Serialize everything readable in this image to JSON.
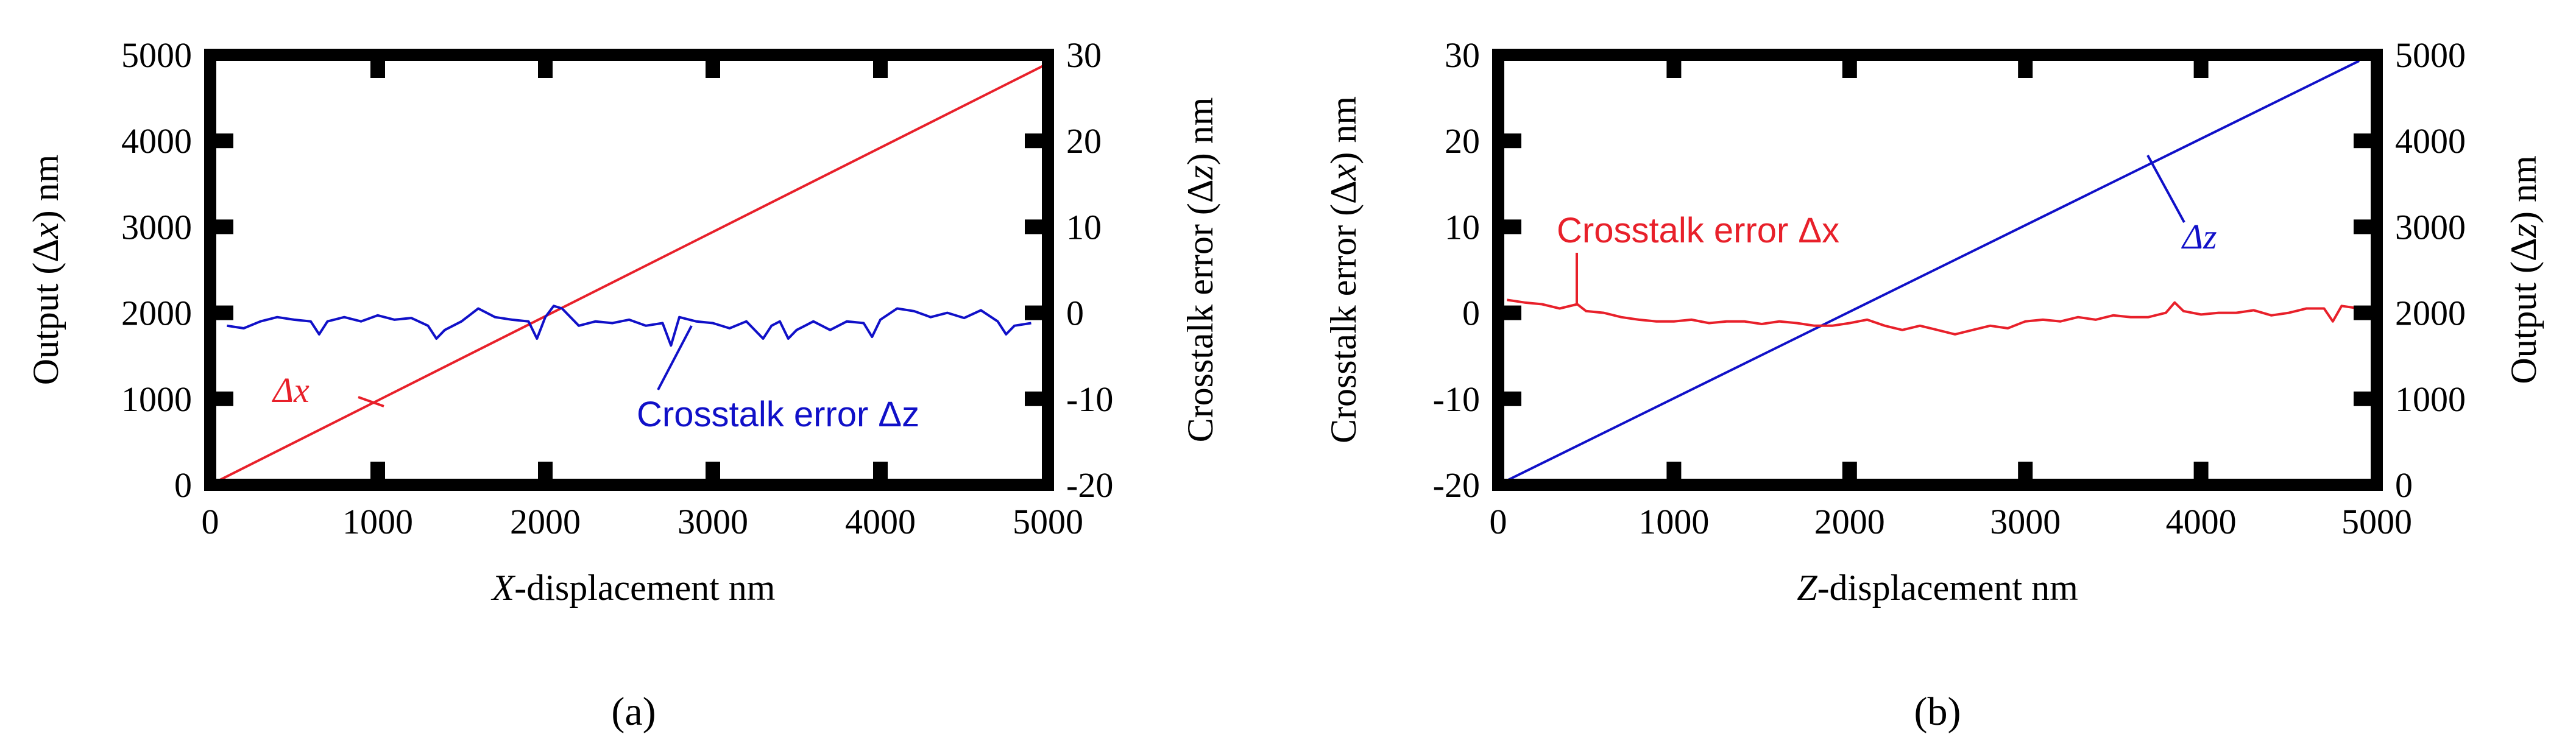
{
  "chart_data": [
    {
      "panel": "a",
      "panel_label": "(a)",
      "type": "line",
      "xlabel": {
        "italic": "X",
        "text": "-displacement  nm"
      },
      "xlim": [
        0,
        5000
      ],
      "xticks": [
        0,
        1000,
        2000,
        3000,
        4000,
        5000
      ],
      "left_axis": {
        "label": "Output (Δx)  nm",
        "label_parts": [
          "Output (Δ",
          "x",
          ")  nm"
        ],
        "ylim": [
          0,
          5000
        ],
        "ticks": [
          0,
          1000,
          2000,
          3000,
          4000,
          5000
        ]
      },
      "right_axis": {
        "label": "Crosstalk error (Δz)  nm",
        "label_parts": [
          "Crosstalk error (Δ",
          "z",
          ")  nm"
        ],
        "ylim": [
          -20,
          30
        ],
        "ticks": [
          -20,
          -10,
          0,
          10,
          20,
          30
        ]
      },
      "series": [
        {
          "name": "Δx",
          "color": "#e8202a",
          "axis": "left",
          "x": [
            0,
            5000
          ],
          "y": [
            0,
            4900
          ]
        },
        {
          "name": "Crosstalk error Δz",
          "color": "#1010c8",
          "axis": "right",
          "x": [
            100,
            200,
            300,
            400,
            500,
            600,
            650,
            700,
            800,
            900,
            1000,
            1100,
            1200,
            1300,
            1350,
            1400,
            1500,
            1600,
            1700,
            1800,
            1900,
            1950,
            2000,
            2050,
            2100,
            2200,
            2300,
            2400,
            2500,
            2600,
            2700,
            2750,
            2800,
            2900,
            3000,
            3100,
            3200,
            3300,
            3350,
            3400,
            3450,
            3500,
            3550,
            3600,
            3700,
            3800,
            3900,
            3950,
            4000,
            4100,
            4200,
            4300,
            4400,
            4500,
            4600,
            4700,
            4750,
            4800,
            4900
          ],
          "y": [
            -1.5,
            -1.8,
            -1.0,
            -0.5,
            -0.8,
            -1.0,
            -2.5,
            -1.0,
            -0.5,
            -1.0,
            -0.3,
            -0.8,
            -0.6,
            -1.5,
            -3.0,
            -2.0,
            -1.0,
            0.5,
            -0.5,
            -0.8,
            -1.0,
            -3.0,
            -0.5,
            0.8,
            0.5,
            -1.5,
            -1.0,
            -1.2,
            -0.8,
            -1.5,
            -1.2,
            -3.8,
            -0.5,
            -1.0,
            -1.2,
            -1.8,
            -1.0,
            -3.0,
            -1.5,
            -1.0,
            -3.0,
            -2.0,
            -1.5,
            -1.0,
            -2.0,
            -1.0,
            -1.2,
            -2.8,
            -0.8,
            0.5,
            0.2,
            -0.5,
            0.0,
            -0.6,
            0.3,
            -1.0,
            -2.5,
            -1.5,
            -1.2
          ]
        }
      ],
      "annotations": [
        {
          "label": "Δx",
          "color": "#e8202a"
        },
        {
          "label": "Crosstalk error Δz",
          "color": "#1010c8"
        }
      ]
    },
    {
      "panel": "b",
      "panel_label": "(b)",
      "type": "line",
      "xlabel": {
        "italic": "Z",
        "text": "-displacement  nm"
      },
      "xlim": [
        0,
        5000
      ],
      "xticks": [
        0,
        1000,
        2000,
        3000,
        4000,
        5000
      ],
      "left_axis": {
        "label": "Crosstalk error (Δx)  nm",
        "label_parts": [
          "Crosstalk error (Δ",
          "x",
          ")  nm"
        ],
        "ylim": [
          -20,
          30
        ],
        "ticks": [
          -20,
          -10,
          0,
          10,
          20,
          30
        ]
      },
      "right_axis": {
        "label": "Output (Δz)  nm",
        "label_parts": [
          "Output (Δ",
          "z",
          ")  nm"
        ],
        "ylim": [
          0,
          5000
        ],
        "ticks": [
          0,
          1000,
          2000,
          3000,
          4000,
          5000
        ]
      },
      "series": [
        {
          "name": "Δz",
          "color": "#1010c8",
          "axis": "right",
          "x": [
            0,
            4900
          ],
          "y": [
            0,
            4930
          ]
        },
        {
          "name": "Crosstalk error Δx",
          "color": "#e8202a",
          "axis": "left",
          "x": [
            50,
            150,
            250,
            350,
            450,
            500,
            600,
            700,
            800,
            900,
            1000,
            1100,
            1200,
            1300,
            1400,
            1500,
            1600,
            1700,
            1800,
            1900,
            2000,
            2100,
            2200,
            2300,
            2400,
            2500,
            2600,
            2700,
            2800,
            2900,
            3000,
            3100,
            3200,
            3300,
            3400,
            3500,
            3600,
            3700,
            3800,
            3850,
            3900,
            4000,
            4100,
            4200,
            4300,
            4400,
            4500,
            4600,
            4700,
            4750,
            4800,
            4900
          ],
          "y": [
            1.5,
            1.2,
            1.0,
            0.5,
            1.0,
            0.2,
            0.0,
            -0.5,
            -0.8,
            -1.0,
            -1.0,
            -0.8,
            -1.2,
            -1.0,
            -1.0,
            -1.3,
            -1.0,
            -1.2,
            -1.5,
            -1.5,
            -1.2,
            -0.8,
            -1.5,
            -2.0,
            -1.5,
            -2.0,
            -2.5,
            -2.0,
            -1.5,
            -1.8,
            -1.0,
            -0.8,
            -1.0,
            -0.5,
            -0.8,
            -0.3,
            -0.5,
            -0.5,
            0.0,
            1.2,
            0.2,
            -0.2,
            0.0,
            0.0,
            0.3,
            -0.3,
            0.0,
            0.5,
            0.5,
            -1.0,
            0.8,
            0.5
          ]
        }
      ],
      "annotations": [
        {
          "label": "Crosstalk error Δx",
          "color": "#e8202a"
        },
        {
          "label": "Δz",
          "color": "#1010c8"
        }
      ]
    }
  ]
}
